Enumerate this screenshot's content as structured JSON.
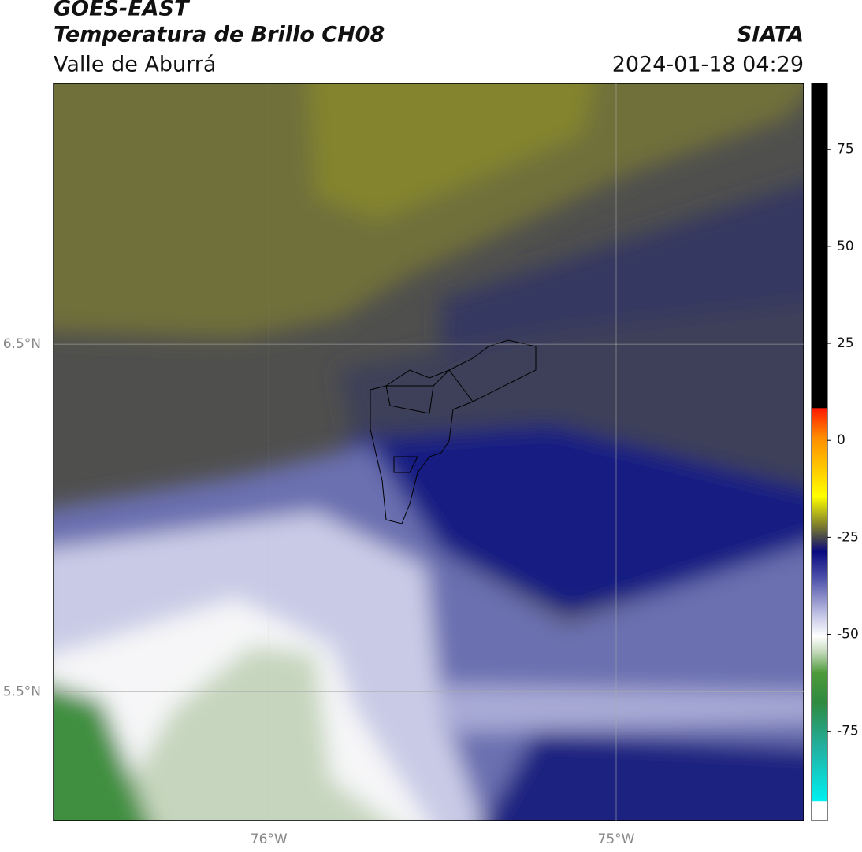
{
  "header": {
    "title": "GOES-EAST",
    "subtitle": "Temperatura de Brillo CH08",
    "region": "Valle de Aburrá",
    "source": "SIATA",
    "datetime": "2024-01-18 04:29"
  },
  "map": {
    "latlim": [
      5.13,
      7.25
    ],
    "lonlim": [
      -76.62,
      -74.46
    ],
    "latticks": [
      {
        "value": 5.5,
        "label": "5.5°N"
      },
      {
        "value": 6.5,
        "label": "6.5°N"
      }
    ],
    "lonticks": [
      {
        "value": -76,
        "label": "76°W"
      },
      {
        "value": -75,
        "label": "75°W"
      }
    ]
  },
  "colorbar": {
    "lim": [
      -98,
      92
    ],
    "ticks": [
      -75,
      -50,
      -25,
      0,
      25,
      50,
      75
    ]
  }
}
